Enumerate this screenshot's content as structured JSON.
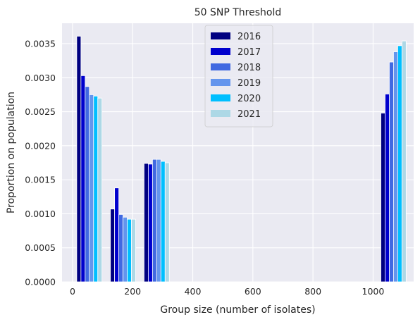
{
  "chart_data": {
    "type": "bar",
    "title": "50 SNP Threshold",
    "xlabel": "Group size (number of isolates)",
    "ylabel": "Proportion on population",
    "xlim": [
      -35,
      1135
    ],
    "ylim": [
      0,
      0.0038
    ],
    "x_ticks": [
      0,
      200,
      400,
      600,
      800,
      1000
    ],
    "y_ticks": [
      0.0,
      0.0005,
      0.001,
      0.0015,
      0.002,
      0.0025,
      0.003,
      0.0035
    ],
    "x_tick_labels": [
      "0",
      "200",
      "400",
      "600",
      "800",
      "1000"
    ],
    "y_tick_labels": [
      "0.0000",
      "0.0005",
      "0.0010",
      "0.0015",
      "0.0020",
      "0.0025",
      "0.0030",
      "0.0035"
    ],
    "grid": true,
    "legend_position": "top-center",
    "bar_width": 14,
    "group_centers": [
      56,
      168,
      280,
      1068
    ],
    "series": [
      {
        "name": "2016",
        "color": "#000080",
        "values": [
          0.00361,
          0.00107,
          0.00174,
          0.00248
        ]
      },
      {
        "name": "2017",
        "color": "#0000CD",
        "values": [
          0.00303,
          0.00138,
          0.00173,
          0.00276
        ]
      },
      {
        "name": "2018",
        "color": "#4169E1",
        "values": [
          0.00287,
          0.00099,
          0.0018,
          0.00323
        ]
      },
      {
        "name": "2019",
        "color": "#6495ED",
        "values": [
          0.00275,
          0.00095,
          0.0018,
          0.00338
        ]
      },
      {
        "name": "2020",
        "color": "#00BFFF",
        "values": [
          0.00273,
          0.00092,
          0.00177,
          0.00347
        ]
      },
      {
        "name": "2021",
        "color": "#ADD8E6",
        "values": [
          0.0027,
          0.00092,
          0.00175,
          0.00354
        ]
      }
    ]
  }
}
